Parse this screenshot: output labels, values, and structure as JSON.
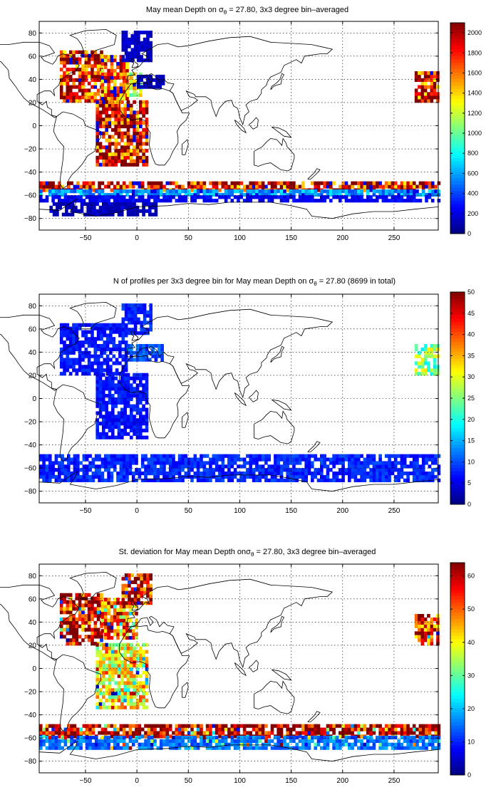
{
  "chart_data": [
    {
      "type": "heatmap",
      "title_prefix": "May mean Depth on σ",
      "title_sub": "θ",
      "title_suffix": " = 27.80, 3x3 degree bin–averaged",
      "xlim": [
        -95,
        293
      ],
      "ylim": [
        -90,
        90
      ],
      "xticks": [
        -50,
        0,
        50,
        100,
        150,
        200,
        250
      ],
      "yticks": [
        80,
        60,
        40,
        20,
        0,
        -20,
        -40,
        -60,
        -80
      ],
      "grid": true,
      "colorbar": {
        "min": 0,
        "max": 2100,
        "ticks": [
          0,
          200,
          400,
          600,
          800,
          1000,
          1200,
          1400,
          1600,
          1800,
          2000
        ]
      },
      "regions": [
        {
          "x": [
            -75,
            -35
          ],
          "y": [
            20,
            65
          ],
          "value": 1850
        },
        {
          "x": [
            -35,
            -10
          ],
          "y": [
            22,
            60
          ],
          "value": 1650
        },
        {
          "x": [
            -10,
            5
          ],
          "y": [
            25,
            45
          ],
          "value": 1250
        },
        {
          "x": [
            -15,
            15
          ],
          "y": [
            55,
            80
          ],
          "value": 150
        },
        {
          "x": [
            0,
            25
          ],
          "y": [
            32,
            42
          ],
          "value": 100
        },
        {
          "x": [
            -40,
            10
          ],
          "y": [
            -35,
            20
          ],
          "value": 1900
        },
        {
          "x": [
            -95,
            293
          ],
          "y": [
            -57,
            -48
          ],
          "value": 1900
        },
        {
          "x": [
            -95,
            293
          ],
          "y": [
            -61,
            -57
          ],
          "value": 600
        },
        {
          "x": [
            -95,
            293
          ],
          "y": [
            -66,
            -61
          ],
          "value": 250
        },
        {
          "x": [
            -85,
            20
          ],
          "y": [
            -78,
            -66
          ],
          "value": 100
        },
        {
          "x": [
            270,
            293
          ],
          "y": [
            20,
            45
          ],
          "value": 1900
        }
      ]
    },
    {
      "type": "heatmap",
      "title_prefix": "N of profiles per 3x3 degree bin for May mean Depth on σ",
      "title_sub": "θ",
      "title_suffix": " = 27.80 (8699 in total)",
      "xlim": [
        -95,
        293
      ],
      "ylim": [
        -90,
        90
      ],
      "xticks": [
        -50,
        0,
        50,
        100,
        150,
        200,
        250
      ],
      "yticks": [
        80,
        60,
        40,
        20,
        0,
        -20,
        -40,
        -60,
        -80
      ],
      "grid": true,
      "colorbar": {
        "min": 0,
        "max": 50,
        "ticks": [
          0,
          5,
          10,
          15,
          20,
          25,
          30,
          35,
          40,
          45,
          50
        ]
      },
      "regions": [
        {
          "x": [
            -75,
            -10
          ],
          "y": [
            20,
            65
          ],
          "value": 7
        },
        {
          "x": [
            -15,
            15
          ],
          "y": [
            55,
            80
          ],
          "value": 8
        },
        {
          "x": [
            -10,
            25
          ],
          "y": [
            32,
            45
          ],
          "value": 10
        },
        {
          "x": [
            -40,
            10
          ],
          "y": [
            -35,
            20
          ],
          "value": 7
        },
        {
          "x": [
            -95,
            293
          ],
          "y": [
            -72,
            -48
          ],
          "value": 8
        },
        {
          "x": [
            270,
            293
          ],
          "y": [
            20,
            45
          ],
          "value": 25
        }
      ]
    },
    {
      "type": "heatmap",
      "title_prefix": "St. deviation for May mean Depth on",
      "title_sym": "σ",
      "title_sub": "θ",
      "title_suffix": " = 27.80, 3x3 degree bin–averaged",
      "xlim": [
        -95,
        293
      ],
      "ylim": [
        -90,
        90
      ],
      "xticks": [
        -50,
        0,
        50,
        100,
        150,
        200,
        250
      ],
      "yticks": [
        80,
        60,
        40,
        20,
        0,
        -20,
        -40,
        -60,
        -80
      ],
      "grid": true,
      "colorbar": {
        "min": 0,
        "max": 64,
        "ticks": [
          0,
          10,
          20,
          30,
          40,
          50,
          60
        ]
      },
      "regions": [
        {
          "x": [
            -75,
            -35
          ],
          "y": [
            20,
            65
          ],
          "value": 60
        },
        {
          "x": [
            -35,
            0
          ],
          "y": [
            25,
            60
          ],
          "value": 50
        },
        {
          "x": [
            -15,
            15
          ],
          "y": [
            55,
            80
          ],
          "value": 60
        },
        {
          "x": [
            -40,
            10
          ],
          "y": [
            -35,
            20
          ],
          "value": 40
        },
        {
          "x": [
            -95,
            293
          ],
          "y": [
            -60,
            -48
          ],
          "value": 62
        },
        {
          "x": [
            -95,
            293
          ],
          "y": [
            -70,
            -60
          ],
          "value": 15
        },
        {
          "x": [
            270,
            293
          ],
          "y": [
            20,
            45
          ],
          "value": 55
        }
      ]
    }
  ]
}
